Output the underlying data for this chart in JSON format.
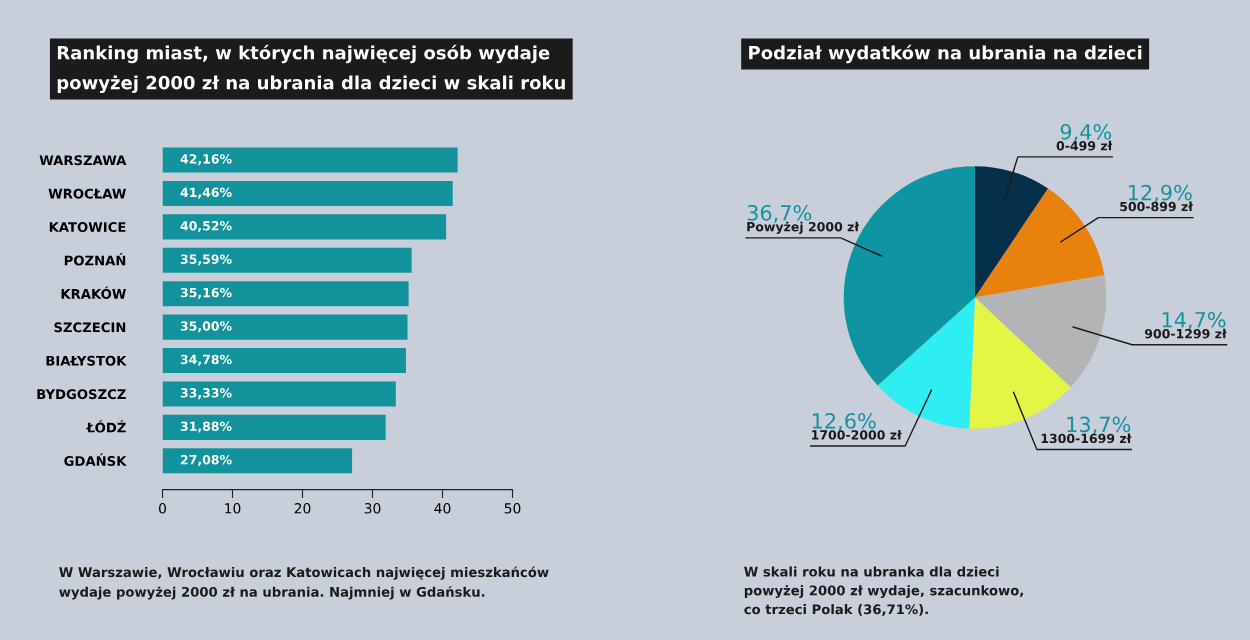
{
  "chart_data": [
    {
      "type": "bar",
      "orientation": "horizontal",
      "title": "Ranking miast, w których najwięcej osób wydaje\npowyżej 2000 zł na ubrania dla dzieci w skali roku",
      "categories": [
        "WARSZAWA",
        "WROCŁAW",
        "KATOWICE",
        "POZNAŃ",
        "KRAKÓW",
        "SZCZECIN",
        "BIAŁYSTOK",
        "BYDGOSZCZ",
        "ŁÓDŹ",
        "GDAŃSK"
      ],
      "values": [
        42.16,
        41.46,
        40.52,
        35.59,
        35.16,
        35.0,
        34.78,
        33.33,
        31.88,
        27.08
      ],
      "value_labels": [
        "42,16%",
        "41,46%",
        "40,52%",
        "35,59%",
        "35,16%",
        "35,00%",
        "34,78%",
        "33,33%",
        "31,88%",
        "27,08%"
      ],
      "color": "#12939c",
      "xlim": [
        0,
        50
      ],
      "xticks": [
        0,
        10,
        20,
        30,
        40,
        50
      ],
      "grid": false,
      "legend": false,
      "annotations": [
        "W Warszawie, Wrocławiu oraz Katowicach najwięcej mieszkańców\nwydaje powyżej 2000 zł na ubrania. Najmniej w Gdańsku."
      ]
    },
    {
      "type": "pie",
      "title": "Podział wydatków na ubrania na dzieci",
      "categories": [
        "0-499 zł",
        "500-899 zł",
        "900-1299 zł",
        "1300-1699 zł",
        "1700-2000 zł",
        "Powyżej 2000 zł"
      ],
      "values": [
        9.4,
        12.9,
        14.7,
        13.7,
        12.6,
        36.7
      ],
      "value_labels": [
        "9,4%",
        "12,9%",
        "14,7%",
        "13,7%",
        "12,6%",
        "36,7%"
      ],
      "colors": [
        "#06304a",
        "#e8820c",
        "#b2b4b6",
        "#e4f545",
        "#2eeef2",
        "#0f95a2"
      ],
      "legend": false,
      "annotations": [
        "W skali roku na ubranka dla dzieci\npowyżej 2000 zł wydaje, szacunkowo,\nco trzeci Polak (36,71%)."
      ]
    }
  ]
}
